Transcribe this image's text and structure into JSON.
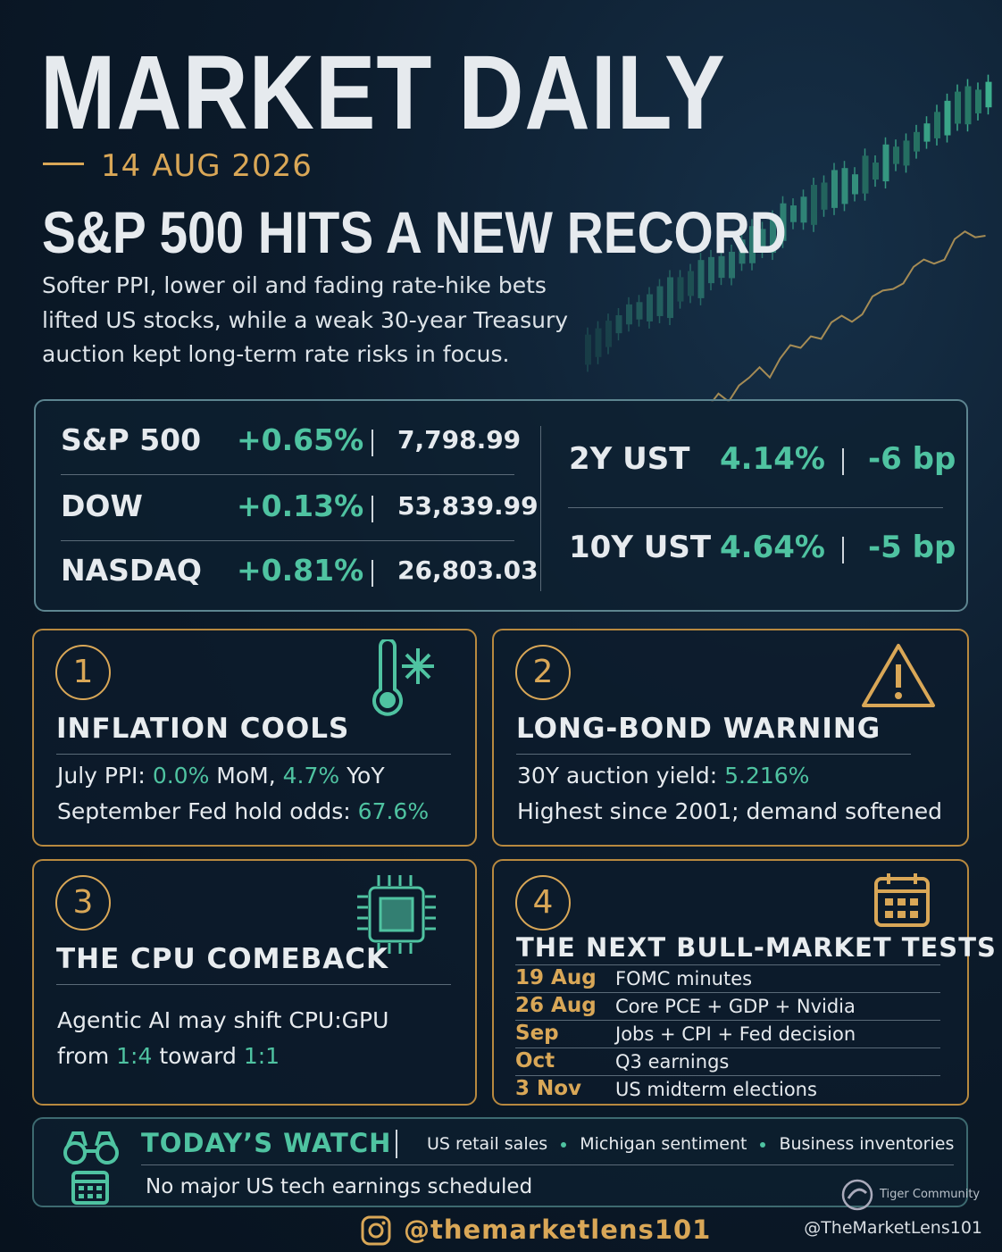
{
  "header": {
    "title": "MARKET DAILY",
    "date": "14 AUG 2026",
    "headline": "S&P 500 HITS A NEW RECORD",
    "summary": [
      "Softer PPI, lower oil and fading rate-hike bets",
      "lifted US stocks, while a weak 30-year Treasury",
      "auction kept long-term rate risks in focus."
    ]
  },
  "indices": [
    {
      "name": "S&P 500",
      "change": "+0.65%",
      "level": "7,798.99"
    },
    {
      "name": "DOW",
      "change": "+0.13%",
      "level": "53,839.99"
    },
    {
      "name": "NASDAQ",
      "change": "+0.81%",
      "level": "26,803.03"
    }
  ],
  "treasuries": [
    {
      "name": "2Y UST",
      "yield": "4.14%",
      "change": "-6 bp"
    },
    {
      "name": "10Y UST",
      "yield": "4.64%",
      "change": "-5 bp"
    }
  ],
  "cards": [
    {
      "number": "1",
      "title": "INFLATION COOLS",
      "lines": [
        [
          "July PPI: ",
          "0.0%",
          " MoM, ",
          "4.7%",
          " YoY"
        ],
        [
          "September Fed hold odds: ",
          "67.6%"
        ]
      ]
    },
    {
      "number": "2",
      "title": "LONG-BOND WARNING",
      "lines": [
        [
          "30Y auction yield: ",
          "5.216%"
        ],
        [
          "Highest since 2001; demand softened"
        ]
      ]
    },
    {
      "number": "3",
      "title": "THE CPU COMEBACK",
      "lines": [
        [
          "Agentic AI may shift CPU:GPU"
        ],
        [
          "from ",
          "1:4",
          " toward ",
          "1:1"
        ]
      ]
    },
    {
      "number": "4",
      "title": "THE NEXT BULL-MARKET TESTS",
      "schedule": [
        [
          "19 Aug",
          "FOMC minutes"
        ],
        [
          "26 Aug",
          "Core PCE + GDP + Nvidia"
        ],
        [
          "Sep",
          "Jobs + CPI + Fed decision"
        ],
        [
          "Oct",
          "Q3 earnings"
        ],
        [
          "3 Nov",
          "US midterm elections"
        ]
      ]
    }
  ],
  "watch": {
    "title": "TODAY’S WATCH",
    "items": [
      "US retail sales",
      "Michigan sentiment",
      "Business inventories"
    ],
    "note": "No major US tech earnings scheduled"
  },
  "footer": {
    "handle": "@themarketlens101",
    "watermark": "Tiger Community",
    "credit": "@TheMarketLens101"
  }
}
